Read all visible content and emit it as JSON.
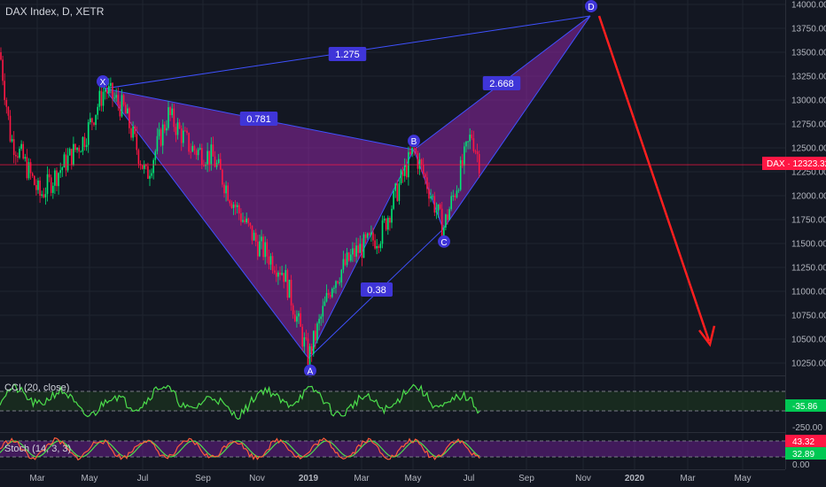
{
  "header": {
    "title": "DAX Index, D, XETR"
  },
  "colors": {
    "background": "#131722",
    "grid": "#1f2430",
    "up": "#26a69a",
    "down": "#ef5350",
    "bright_up": "#00e676",
    "bright_down": "#ff1744",
    "pattern_fill": "#9c27b0",
    "pattern_line": "#3f51ff",
    "label_bg": "#3f35d8",
    "price_line": "#ff1744",
    "arrow": "#ff1f1f",
    "cci_line": "#4cde4c",
    "stoch_k": "#ff5c3b",
    "stoch_d": "#4cde4c",
    "stoch_band": "#7b1fa2"
  },
  "price_axis": {
    "ticks": [
      "14000.00",
      "13750.00",
      "13500.00",
      "13250.00",
      "13000.00",
      "12750.00",
      "12500.00",
      "12250.00",
      "12000.00",
      "11750.00",
      "11500.00",
      "11250.00",
      "11000.00",
      "10750.00",
      "10500.00",
      "10250.00"
    ],
    "current_label": "DAX · 12323.32",
    "current_value": 12323.32
  },
  "time_axis": {
    "labels": [
      "Mar",
      "May",
      "Jul",
      "Sep",
      "Nov",
      "2019",
      "Mar",
      "May",
      "Jul",
      "Sep",
      "Nov",
      "2020",
      "Mar",
      "May"
    ]
  },
  "pattern": {
    "points": [
      {
        "name": "X",
        "price": 13120
      },
      {
        "name": "A",
        "price": 10300
      },
      {
        "name": "B",
        "price": 12480
      },
      {
        "name": "C",
        "price": 11650
      },
      {
        "name": "D",
        "price": 13880
      }
    ],
    "ratios": [
      "1.275",
      "0.781",
      "2.668",
      "0.38"
    ]
  },
  "indicators": {
    "cci": {
      "label": "CCI (20, close)",
      "value_label": "-35.86",
      "ticks": [
        "-250.00"
      ]
    },
    "stoch": {
      "label": "Stoch (14, 3, 3)",
      "k_label": "43.32",
      "d_label": "32.89",
      "ticks": [
        "0.00"
      ]
    }
  }
}
